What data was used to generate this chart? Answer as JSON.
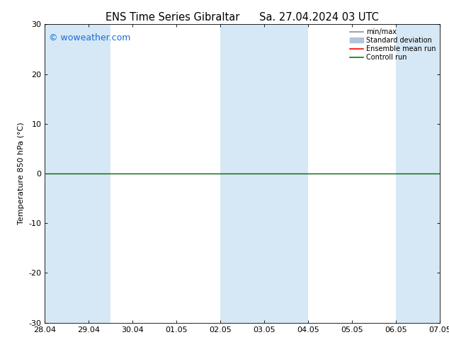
{
  "title_left": "ENS Time Series Gibraltar",
  "title_right": "Sa. 27.04.2024 03 UTC",
  "ylabel": "Temperature 850 hPa (°C)",
  "ylim": [
    -30,
    30
  ],
  "yticks": [
    -30,
    -20,
    -10,
    0,
    10,
    20,
    30
  ],
  "xtick_labels": [
    "28.04",
    "29.04",
    "30.04",
    "01.05",
    "02.05",
    "03.05",
    "04.05",
    "05.05",
    "06.05",
    "07.05"
  ],
  "watermark": "© woweather.com",
  "legend_entries": [
    "min/max",
    "Standard deviation",
    "Ensemble mean run",
    "Controll run"
  ],
  "legend_colors": [
    "#909090",
    "#b0c4d8",
    "#ff0000",
    "#008000"
  ],
  "band_color": "#d6e8f5",
  "background_color": "#ffffff",
  "zero_line_color": "#006400",
  "title_fontsize": 10.5,
  "tick_fontsize": 8,
  "watermark_color": "#1a6bd4",
  "ylabel_fontsize": 8
}
